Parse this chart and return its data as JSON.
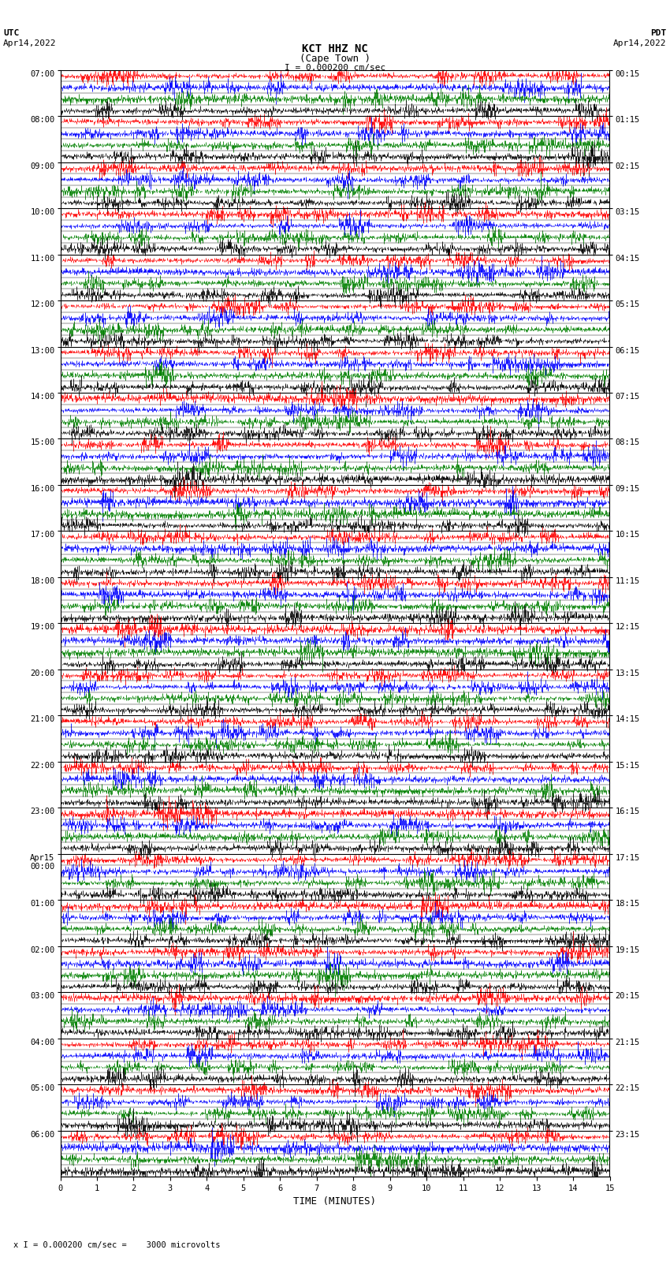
{
  "title_line1": "KCT HHZ NC",
  "title_line2": "(Cape Town )",
  "scale_text": "I = 0.000200 cm/sec",
  "utc_label": "UTC",
  "utc_date": "Apr14,2022",
  "pdt_label": "PDT",
  "pdt_date": "Apr14,2022",
  "bottom_scale": "x I = 0.000200 cm/sec =    3000 microvolts",
  "xlabel": "TIME (MINUTES)",
  "left_yticks": [
    "07:00",
    "08:00",
    "09:00",
    "10:00",
    "11:00",
    "12:00",
    "13:00",
    "14:00",
    "15:00",
    "16:00",
    "17:00",
    "18:00",
    "19:00",
    "20:00",
    "21:00",
    "22:00",
    "23:00",
    "Apr15\n00:00",
    "01:00",
    "02:00",
    "03:00",
    "04:00",
    "05:00",
    "06:00"
  ],
  "right_yticks": [
    "00:15",
    "01:15",
    "02:15",
    "03:15",
    "04:15",
    "05:15",
    "06:15",
    "07:15",
    "08:15",
    "09:15",
    "10:15",
    "11:15",
    "12:15",
    "13:15",
    "14:15",
    "15:15",
    "16:15",
    "17:15",
    "18:15",
    "19:15",
    "20:15",
    "21:15",
    "22:15",
    "23:15"
  ],
  "xticks": [
    0,
    1,
    2,
    3,
    4,
    5,
    6,
    7,
    8,
    9,
    10,
    11,
    12,
    13,
    14,
    15
  ],
  "xmin": 0,
  "xmax": 15,
  "num_rows": 24,
  "traces_per_row": 4,
  "samples_per_trace": 1500,
  "colors": [
    "red",
    "blue",
    "green",
    "black"
  ],
  "amplitude": 0.48,
  "bg_color": "white",
  "plot_bg_color": "white",
  "title_fontsize": 9,
  "label_fontsize": 8,
  "tick_fontsize": 7.5
}
